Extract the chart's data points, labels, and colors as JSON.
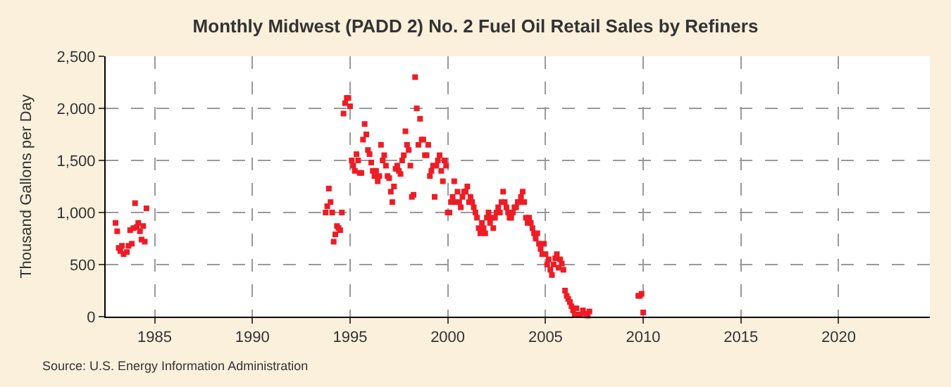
{
  "chart_data": {
    "type": "scatter",
    "title": "Monthly Midwest (PADD 2) No. 2 Fuel Oil Retail Sales by Refiners",
    "ylabel": "Thousand Gallons per Day",
    "marker": "square",
    "grid": true,
    "legend": false,
    "annotations": [
      "Source: U.S. Energy Information Administration"
    ],
    "xlim": [
      "1982-07",
      "2024-09"
    ],
    "xticks": [
      {
        "value": "1985",
        "label": "1985"
      },
      {
        "value": "1990",
        "label": "1990"
      },
      {
        "value": "1995",
        "label": "1995"
      },
      {
        "value": "2000",
        "label": "2000"
      },
      {
        "value": "2005",
        "label": "2005"
      },
      {
        "value": "2010",
        "label": "2010"
      },
      {
        "value": "2015",
        "label": "2015"
      },
      {
        "value": "2020",
        "label": "2020"
      }
    ],
    "ylim": [
      0,
      2500
    ],
    "yticks": [
      0,
      500,
      {
        "value": 1000,
        "label": "1,000"
      },
      {
        "value": 1500,
        "label": "1,500"
      },
      {
        "value": 2000,
        "label": "2,000"
      },
      {
        "value": 2500,
        "label": "2,500"
      }
    ],
    "x": [
      "1983-01",
      "1983-02",
      "1983-03",
      "1983-04",
      "1983-05",
      "1983-06",
      "1983-08",
      "1983-09",
      "1983-10",
      "1983-11",
      "1983-12",
      "1984-01",
      "1984-02",
      "1984-03",
      "1984-04",
      "1984-05",
      "1984-06",
      "1984-07",
      "1984-08",
      "1993-10",
      "1993-11",
      "1993-12",
      "1994-01",
      "1994-02",
      "1994-03",
      "1994-04",
      "1994-05",
      "1994-06",
      "1994-07",
      "1994-08",
      "1994-09",
      "1994-10",
      "1994-11",
      "1994-12",
      "1995-01",
      "1995-02",
      "1995-03",
      "1995-04",
      "1995-05",
      "1995-06",
      "1995-07",
      "1995-08",
      "1995-09",
      "1995-10",
      "1995-11",
      "1995-12",
      "1996-01",
      "1996-02",
      "1996-03",
      "1996-04",
      "1996-05",
      "1996-06",
      "1996-07",
      "1996-08",
      "1996-09",
      "1996-10",
      "1996-11",
      "1996-12",
      "1997-01",
      "1997-02",
      "1997-03",
      "1997-04",
      "1997-05",
      "1997-06",
      "1997-07",
      "1997-08",
      "1997-09",
      "1997-10",
      "1997-11",
      "1997-12",
      "1998-01",
      "1998-02",
      "1998-03",
      "1998-04",
      "1998-05",
      "1998-06",
      "1998-07",
      "1998-08",
      "1998-09",
      "1998-10",
      "1998-11",
      "1998-12",
      "1999-01",
      "1999-02",
      "1999-03",
      "1999-04",
      "1999-05",
      "1999-06",
      "1999-07",
      "1999-08",
      "1999-09",
      "1999-10",
      "1999-11",
      "1999-12",
      "2000-01",
      "2000-02",
      "2000-03",
      "2000-04",
      "2000-05",
      "2000-06",
      "2000-07",
      "2000-08",
      "2000-09",
      "2000-10",
      "2000-11",
      "2000-12",
      "2001-01",
      "2001-02",
      "2001-03",
      "2001-04",
      "2001-05",
      "2001-06",
      "2001-07",
      "2001-08",
      "2001-09",
      "2001-10",
      "2001-11",
      "2001-12",
      "2002-01",
      "2002-02",
      "2002-03",
      "2002-04",
      "2002-05",
      "2002-06",
      "2002-07",
      "2002-08",
      "2002-09",
      "2002-10",
      "2002-11",
      "2002-12",
      "2003-01",
      "2003-02",
      "2003-03",
      "2003-04",
      "2003-05",
      "2003-06",
      "2003-07",
      "2003-08",
      "2003-09",
      "2003-10",
      "2003-11",
      "2003-12",
      "2004-01",
      "2004-02",
      "2004-03",
      "2004-04",
      "2004-05",
      "2004-06",
      "2004-07",
      "2004-08",
      "2004-09",
      "2004-10",
      "2004-11",
      "2004-12",
      "2005-01",
      "2005-02",
      "2005-03",
      "2005-04",
      "2005-05",
      "2005-06",
      "2005-07",
      "2005-08",
      "2005-09",
      "2005-10",
      "2005-11",
      "2005-12",
      "2006-01",
      "2006-02",
      "2006-03",
      "2006-04",
      "2006-05",
      "2006-06",
      "2006-07",
      "2006-08",
      "2006-10",
      "2006-12",
      "2007-01",
      "2007-03",
      "2007-04",
      "2009-10",
      "2009-11",
      "2009-12",
      "2010-01"
    ],
    "series": [
      {
        "color": "#ee1c25",
        "values": [
          900,
          820,
          660,
          630,
          680,
          600,
          620,
          680,
          830,
          700,
          850,
          1090,
          860,
          900,
          820,
          740,
          870,
          720,
          1040,
          1000,
          1060,
          1230,
          1100,
          1000,
          720,
          790,
          870,
          850,
          830,
          1000,
          1950,
          2050,
          2100,
          2100,
          2020,
          1500,
          1450,
          1400,
          1560,
          1500,
          1380,
          1380,
          1700,
          1850,
          1750,
          1600,
          1560,
          1480,
          1400,
          1350,
          1400,
          1300,
          1350,
          1650,
          1500,
          1550,
          1450,
          1350,
          1330,
          1200,
          1100,
          1250,
          1420,
          1450,
          1400,
          1370,
          1500,
          1550,
          1780,
          1650,
          1600,
          1450,
          1150,
          1170,
          2300,
          2000,
          1650,
          1900,
          1700,
          1700,
          1550,
          1550,
          1650,
          1350,
          1400,
          1450,
          1150,
          1450,
          1500,
          1550,
          1400,
          1300,
          1500,
          1450,
          1000,
          1000,
          1100,
          1150,
          1300,
          1100,
          1200,
          1100,
          1050,
          1150,
          1200,
          1200,
          1250,
          1100,
          1150,
          1100,
          1050,
          1000,
          950,
          850,
          800,
          900,
          850,
          800,
          950,
          1000,
          900,
          950,
          850,
          950,
          1000,
          1050,
          1000,
          1100,
          1200,
          1100,
          1050,
          1000,
          950,
          950,
          1000,
          1050,
          1050,
          1100,
          1100,
          1150,
          1200,
          1100,
          950,
          900,
          950,
          900,
          850,
          800,
          750,
          800,
          700,
          650,
          600,
          700,
          600,
          500,
          550,
          450,
          400,
          500,
          560,
          600,
          470,
          550,
          510,
          450,
          250,
          200,
          170,
          140,
          100,
          60,
          20,
          80,
          20,
          60,
          30,
          10,
          50,
          200,
          200,
          220,
          40
        ]
      }
    ]
  }
}
